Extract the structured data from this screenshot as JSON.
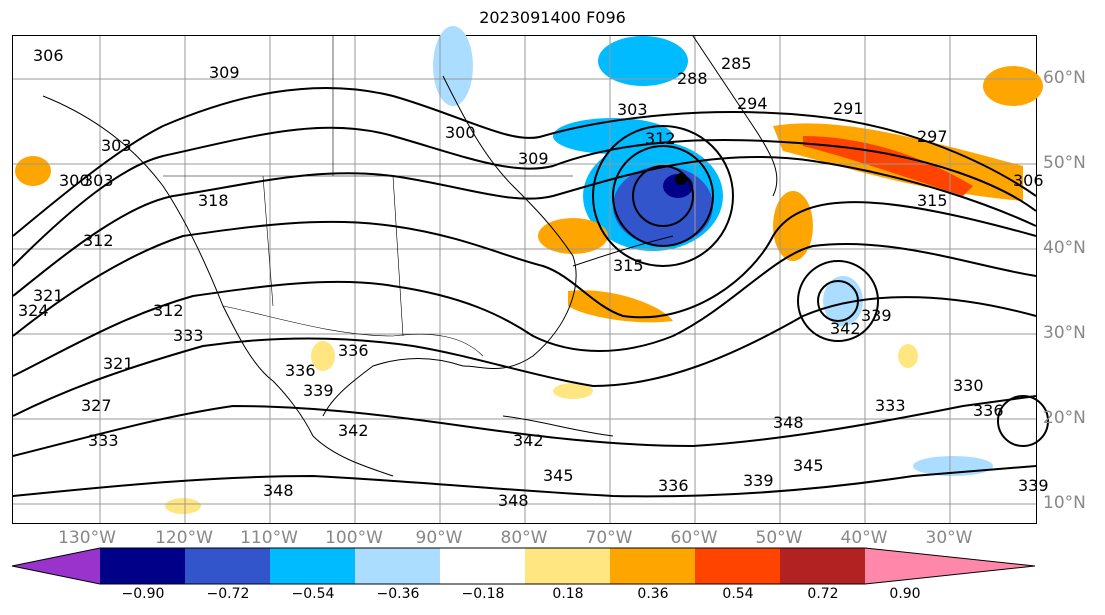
{
  "title": "2023091400 F096",
  "map": {
    "longitude_labels": [
      "130°W",
      "120°W",
      "110°W",
      "100°W",
      "90°W",
      "80°W",
      "70°W",
      "60°W",
      "50°W",
      "40°W",
      "30°W"
    ],
    "latitude_labels": [
      "60°N",
      "50°N",
      "40°N",
      "30°N",
      "20°N",
      "10°N"
    ],
    "contour_labels": [
      "306",
      "309",
      "300",
      "303",
      "285",
      "288",
      "294",
      "303",
      "312",
      "291",
      "297",
      "306",
      "315",
      "300",
      "303",
      "309",
      "318",
      "312",
      "324",
      "321",
      "312",
      "321",
      "327",
      "333",
      "336",
      "315",
      "342",
      "339",
      "348",
      "345",
      "339",
      "342",
      "348",
      "336",
      "330",
      "336",
      "333",
      "348",
      "345",
      "339",
      "336",
      "342",
      "339",
      "333"
    ]
  },
  "colorbar": {
    "colors": [
      "#9933cc",
      "#000088",
      "#3355cc",
      "#00bbff",
      "#aaddff",
      "#ffffff",
      "#ffe680",
      "#ffa500",
      "#ff4400",
      "#b22222",
      "#ff88aa"
    ],
    "tick_labels": [
      "−0.90",
      "−0.72",
      "−0.54",
      "−0.36",
      "−0.18",
      "0.18",
      "0.36",
      "0.54",
      "0.72",
      "0.90"
    ]
  }
}
